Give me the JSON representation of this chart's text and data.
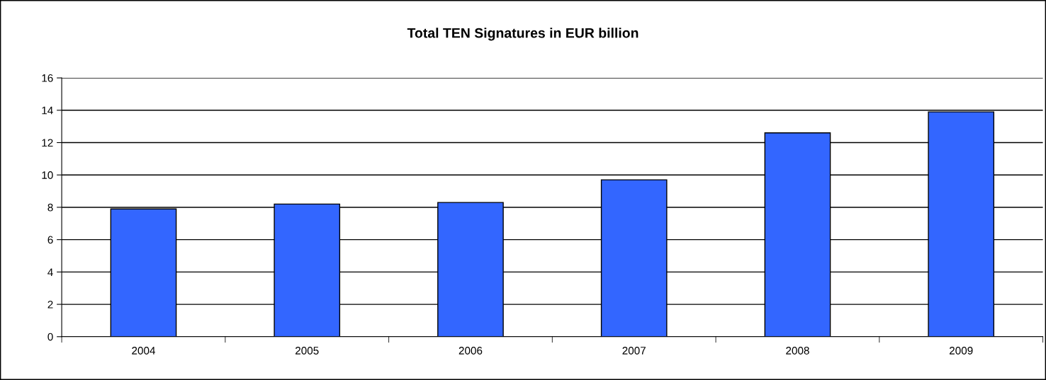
{
  "chart_data": {
    "type": "bar",
    "title": "Total TEN Signatures in EUR billion",
    "categories": [
      "2004",
      "2005",
      "2006",
      "2007",
      "2008",
      "2009"
    ],
    "values": [
      7.9,
      8.2,
      8.3,
      9.7,
      12.6,
      13.9
    ],
    "color": "#3366ff",
    "ylim": [
      0,
      16
    ],
    "yticks": [
      0,
      2,
      4,
      6,
      8,
      10,
      12,
      14,
      16
    ],
    "grid": "y",
    "legend": false
  }
}
